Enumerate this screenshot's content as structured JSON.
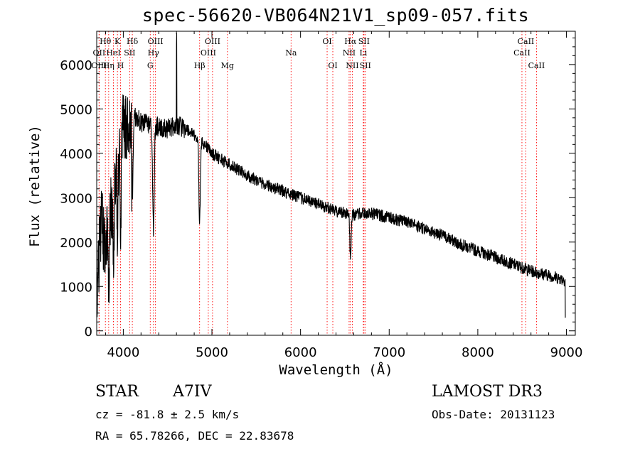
{
  "chart_data": {
    "type": "line",
    "title": "spec-56620-VB064N21V1_sp09-057.fits",
    "xlabel": "Wavelength (Å)",
    "ylabel": "Flux (relative)",
    "xlim": [
      3700,
      9100
    ],
    "ylim": [
      -100,
      6750
    ],
    "xticks": [
      4000,
      5000,
      6000,
      7000,
      8000,
      9000
    ],
    "yticks": [
      0,
      1000,
      2000,
      3000,
      4000,
      5000,
      6000
    ],
    "line_color": "#ff0000",
    "lines": [
      {
        "label": "Hθ",
        "wavelength": 3798,
        "row": 1
      },
      {
        "label": "K",
        "wavelength": 3934,
        "row": 1
      },
      {
        "label": "Hδ",
        "wavelength": 4102,
        "row": 1
      },
      {
        "label": "OIII",
        "wavelength": 4363,
        "row": 1
      },
      {
        "label": "OIII",
        "wavelength": 5007,
        "row": 1
      },
      {
        "label": "OI",
        "wavelength": 6300,
        "row": 1
      },
      {
        "label": "Hα",
        "wavelength": 6563,
        "row": 1
      },
      {
        "label": "SII",
        "wavelength": 6716,
        "row": 1
      },
      {
        "label": "CaII",
        "wavelength": 8542,
        "row": 1
      },
      {
        "label": "OII",
        "wavelength": 3727,
        "row": 2
      },
      {
        "label": "HeI",
        "wavelength": 3889,
        "row": 2
      },
      {
        "label": "SII",
        "wavelength": 4072,
        "row": 2
      },
      {
        "label": "Hγ",
        "wavelength": 4340,
        "row": 2
      },
      {
        "label": "OIII",
        "wavelength": 4959,
        "row": 2
      },
      {
        "label": "Na",
        "wavelength": 5893,
        "row": 2
      },
      {
        "label": "NII",
        "wavelength": 6548,
        "row": 2
      },
      {
        "label": "Li",
        "wavelength": 6708,
        "row": 2
      },
      {
        "label": "CaII",
        "wavelength": 8498,
        "row": 2
      },
      {
        "label": "OIII",
        "wavelength": 3727,
        "row": 3
      },
      {
        "label": "Hη",
        "wavelength": 3835,
        "row": 3
      },
      {
        "label": "H",
        "wavelength": 3969,
        "row": 3
      },
      {
        "label": "G",
        "wavelength": 4304,
        "row": 3
      },
      {
        "label": "Hβ",
        "wavelength": 4861,
        "row": 3
      },
      {
        "label": "Mg",
        "wavelength": 5175,
        "row": 3
      },
      {
        "label": "OI",
        "wavelength": 6364,
        "row": 3
      },
      {
        "label": "NII",
        "wavelength": 6584,
        "row": 3
      },
      {
        "label": "SII",
        "wavelength": 6731,
        "row": 3
      },
      {
        "label": "CaII",
        "wavelength": 8662,
        "row": 3
      }
    ],
    "continuum": {
      "x": [
        3700,
        3750,
        3800,
        3850,
        3900,
        3950,
        4000,
        4050,
        4100,
        4150,
        4200,
        4300,
        4400,
        4500,
        4600,
        4700,
        4800,
        4900,
        5000,
        5200,
        5400,
        5600,
        5800,
        6000,
        6200,
        6400,
        6600,
        6800,
        7000,
        7200,
        7400,
        7600,
        7800,
        8000,
        8200,
        8400,
        8600,
        8800,
        8980
      ],
      "y": [
        800,
        2500,
        1800,
        2600,
        3300,
        3700,
        4600,
        4700,
        4900,
        4800,
        4700,
        4650,
        4600,
        4550,
        4650,
        4550,
        4400,
        4250,
        4000,
        3750,
        3500,
        3300,
        3150,
        3000,
        2850,
        2700,
        2620,
        2650,
        2550,
        2450,
        2300,
        2150,
        1950,
        1800,
        1650,
        1500,
        1350,
        1250,
        1150
      ]
    },
    "absorption": [
      {
        "center": 3835,
        "depth": 1500,
        "width": 6
      },
      {
        "center": 3889,
        "depth": 1800,
        "width": 6
      },
      {
        "center": 3934,
        "depth": 1600,
        "width": 5
      },
      {
        "center": 3969,
        "depth": 2300,
        "width": 6
      },
      {
        "center": 4102,
        "depth": 1900,
        "width": 9
      },
      {
        "center": 4340,
        "depth": 2400,
        "width": 9
      },
      {
        "center": 4861,
        "depth": 1900,
        "width": 8
      },
      {
        "center": 6563,
        "depth": 1000,
        "width": 7
      }
    ],
    "spikes": [
      {
        "center": 4601,
        "height": 1900
      },
      {
        "center": 4090,
        "height": 700
      },
      {
        "center": 3960,
        "height": 600
      }
    ],
    "noise_amplitude": 140
  },
  "footer": {
    "object_class": "STAR",
    "subclass": "A7IV",
    "survey": "LAMOST DR3",
    "cz": "cz = -81.8 ± 2.5 km/s",
    "obs_date": "Obs-Date: 20131123",
    "coords": "RA =  65.78266, DEC =  22.83678"
  }
}
